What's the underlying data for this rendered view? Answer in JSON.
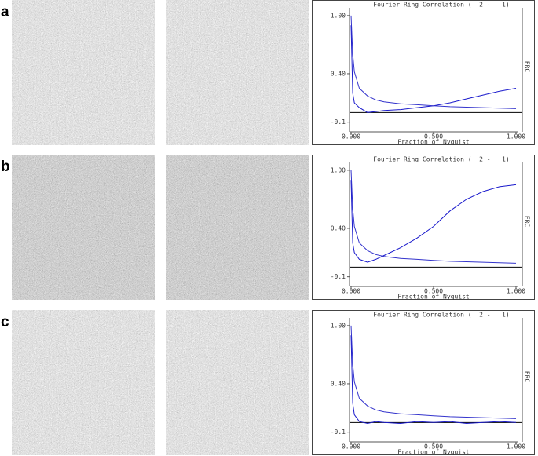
{
  "chart_data": [
    {
      "type": "line",
      "panel": "a",
      "title": "Fourier Ring Correlation (  2 -   1)",
      "xlabel": "Fraction of Nyquist",
      "ylabel": "FRC",
      "x": [
        0,
        0.01,
        0.02,
        0.05,
        0.1,
        0.15,
        0.2,
        0.3,
        0.4,
        0.5,
        0.6,
        0.7,
        0.8,
        0.9,
        1.0
      ],
      "series": [
        {
          "color": "#1a1acc",
          "values": [
            0.9,
            0.2,
            0.1,
            0.05,
            0.0,
            0.01,
            0.02,
            0.03,
            0.05,
            0.07,
            0.1,
            0.14,
            0.18,
            0.22,
            0.25
          ]
        },
        {
          "color": "#3333cc",
          "values": [
            1.0,
            0.6,
            0.42,
            0.25,
            0.17,
            0.13,
            0.11,
            0.09,
            0.08,
            0.07,
            0.06,
            0.055,
            0.05,
            0.045,
            0.04
          ]
        }
      ],
      "xlim": [
        0,
        1
      ],
      "ylim": [
        -0.2,
        1.08
      ],
      "xticks": [
        {
          "value": 0,
          "label": "0.000"
        },
        {
          "value": 0.5,
          "label": "0.500"
        },
        {
          "value": 1,
          "label": "1.000"
        }
      ],
      "yticks": [
        -0.1,
        {
          "value": 0.4,
          "label": "0.40"
        },
        {
          "value": 1,
          "label": "1.00"
        }
      ]
    },
    {
      "type": "line",
      "panel": "b",
      "title": "Fourier Ring Correlation (  2 -   1)",
      "xlabel": "Fraction of Nyquist",
      "ylabel": "FRC",
      "x": [
        0,
        0.01,
        0.02,
        0.05,
        0.1,
        0.15,
        0.2,
        0.3,
        0.4,
        0.5,
        0.6,
        0.7,
        0.8,
        0.9,
        1.0
      ],
      "series": [
        {
          "color": "#1a1acc",
          "values": [
            0.9,
            0.25,
            0.15,
            0.08,
            0.05,
            0.08,
            0.12,
            0.2,
            0.3,
            0.42,
            0.58,
            0.7,
            0.78,
            0.83,
            0.85
          ]
        },
        {
          "color": "#3333cc",
          "values": [
            1.0,
            0.6,
            0.42,
            0.25,
            0.17,
            0.13,
            0.11,
            0.09,
            0.08,
            0.07,
            0.06,
            0.055,
            0.05,
            0.045,
            0.04
          ]
        }
      ],
      "xlim": [
        0,
        1
      ],
      "ylim": [
        -0.2,
        1.08
      ],
      "xticks": [
        {
          "value": 0,
          "label": "0.000"
        },
        {
          "value": 0.5,
          "label": "0.500"
        },
        {
          "value": 1,
          "label": "1.000"
        }
      ],
      "yticks": [
        -0.1,
        {
          "value": 0.4,
          "label": "0.40"
        },
        {
          "value": 1,
          "label": "1.00"
        }
      ]
    },
    {
      "type": "line",
      "panel": "c",
      "title": "Fourier Ring Correlation (  2 -   1)",
      "xlabel": "Fraction of Nyquist",
      "ylabel": "FRC",
      "x": [
        0,
        0.01,
        0.02,
        0.05,
        0.1,
        0.15,
        0.2,
        0.3,
        0.4,
        0.5,
        0.6,
        0.7,
        0.8,
        0.9,
        1.0
      ],
      "series": [
        {
          "color": "#1a1acc",
          "values": [
            0.9,
            0.2,
            0.08,
            0.01,
            -0.01,
            0.01,
            0.0,
            -0.01,
            0.01,
            0.0,
            0.01,
            -0.01,
            0.0,
            0.01,
            0.0
          ]
        },
        {
          "color": "#3333cc",
          "values": [
            1.0,
            0.6,
            0.42,
            0.25,
            0.17,
            0.13,
            0.11,
            0.09,
            0.08,
            0.07,
            0.06,
            0.055,
            0.05,
            0.045,
            0.04
          ]
        }
      ],
      "xlim": [
        0,
        1
      ],
      "ylim": [
        -0.2,
        1.08
      ],
      "xticks": [
        {
          "value": 0,
          "label": "0.000"
        },
        {
          "value": 0.5,
          "label": "0.500"
        },
        {
          "value": 1,
          "label": "1.000"
        }
      ],
      "yticks": [
        -0.1,
        {
          "value": 0.4,
          "label": "0.40"
        },
        {
          "value": 1,
          "label": "1.00"
        }
      ]
    }
  ]
}
